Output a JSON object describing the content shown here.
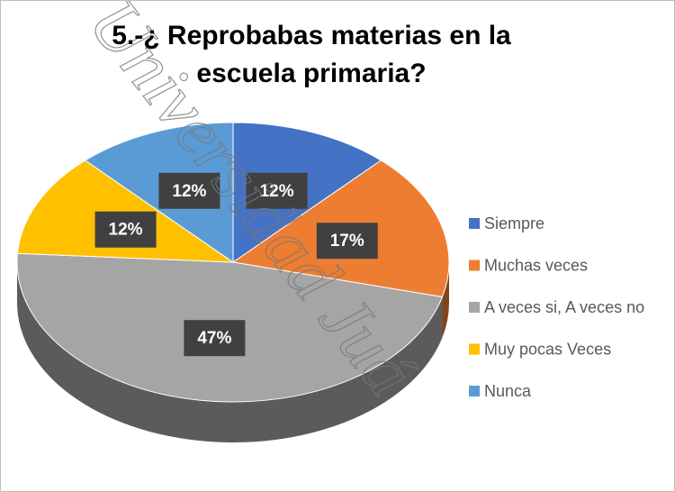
{
  "chart_data": {
    "type": "pie",
    "title": "5.-¿ Reprobabas materias en la escuela primaria?",
    "categories": [
      "Siempre",
      "Muchas veces",
      "A veces si, A veces no",
      "Muy pocas Veces",
      "Nunca"
    ],
    "values": [
      12,
      17,
      47,
      12,
      12
    ],
    "value_labels": [
      "12%",
      "17%",
      "47%",
      "12%",
      "12%"
    ],
    "colors": [
      "#4472c4",
      "#ed7d31",
      "#a5a5a5",
      "#ffc000",
      "#5b9bd5"
    ],
    "legend": "right"
  },
  "watermark": "Universidad Juá"
}
